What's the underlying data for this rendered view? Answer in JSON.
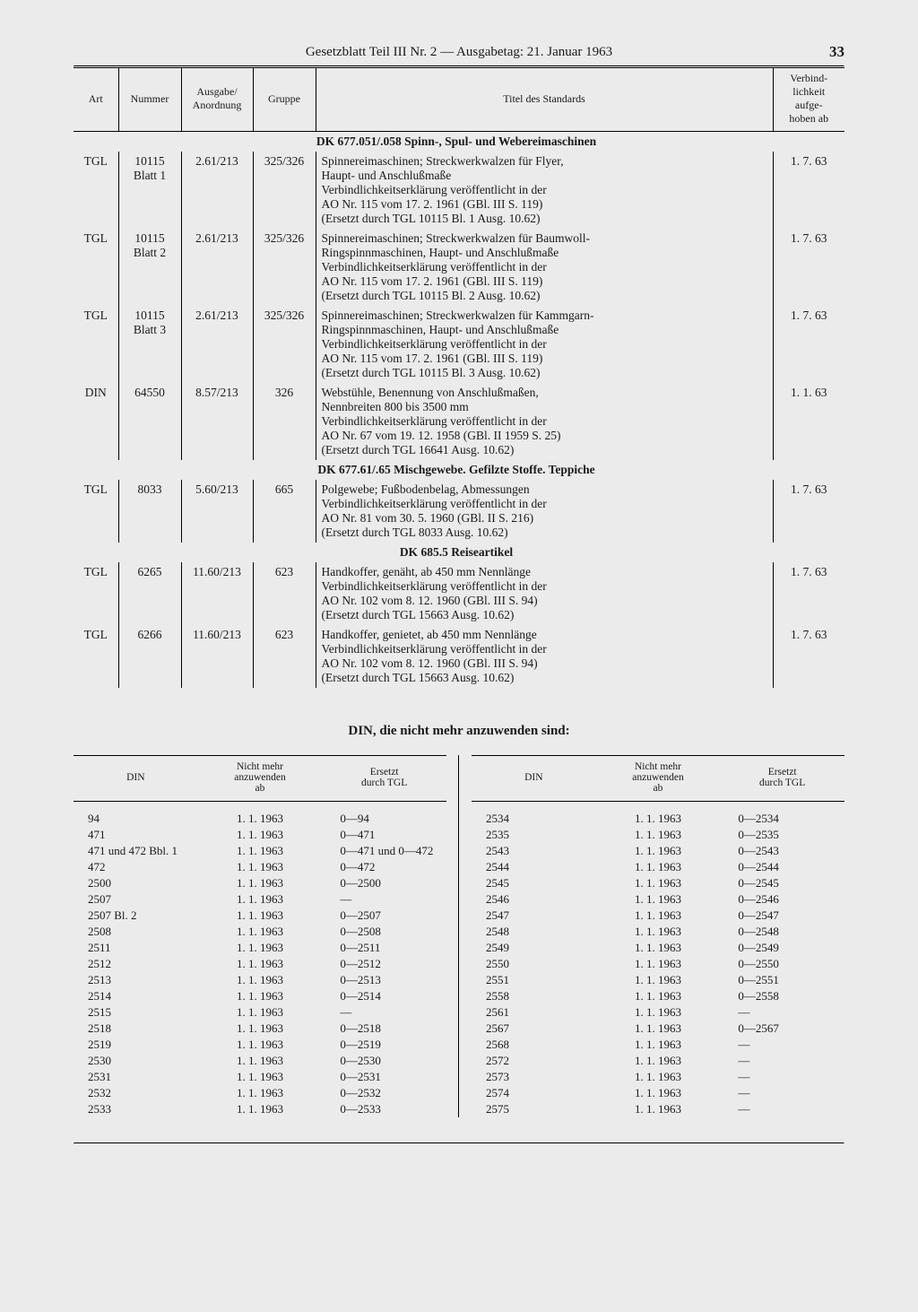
{
  "header": {
    "title": "Gesetzblatt Teil III Nr. 2 — Ausgabetag: 21. Januar 1963",
    "page_number": "33"
  },
  "main_table": {
    "headers": {
      "art": "Art",
      "nummer": "Nummer",
      "ausgabe": "Ausgabe/\nAnordnung",
      "gruppe": "Gruppe",
      "titel": "Titel des Standards",
      "verbind": "Verbind-\nlichkeit\naufge-\nhoben ab"
    },
    "sections": [
      {
        "heading": "DK 677.051/.058 Spinn-, Spul- und Webereimaschinen",
        "rows": [
          {
            "art": "TGL",
            "nummer": "10115\nBlatt 1",
            "ausgabe": "2.61/213",
            "gruppe": "325/326",
            "titel": "Spinnereimaschinen; Streckwerkwalzen für Flyer,\nHaupt- und Anschlußmaße\nVerbindlichkeitserklärung veröffentlicht in der\nAO Nr. 115 vom 17. 2. 1961 (GBl. III S. 119)\n(Ersetzt durch TGL 10115 Bl. 1 Ausg. 10.62)",
            "date": "1. 7. 63"
          },
          {
            "art": "TGL",
            "nummer": "10115\nBlatt 2",
            "ausgabe": "2.61/213",
            "gruppe": "325/326",
            "titel": "Spinnereimaschinen; Streckwerkwalzen für Baumwoll-\nRingspinnmaschinen, Haupt- und Anschlußmaße\nVerbindlichkeitserklärung veröffentlicht in der\nAO Nr. 115 vom 17. 2. 1961 (GBl. III S. 119)\n(Ersetzt durch TGL 10115 Bl. 2 Ausg. 10.62)",
            "date": "1. 7. 63"
          },
          {
            "art": "TGL",
            "nummer": "10115\nBlatt 3",
            "ausgabe": "2.61/213",
            "gruppe": "325/326",
            "titel": "Spinnereimaschinen; Streckwerkwalzen für Kammgarn-\nRingspinnmaschinen, Haupt- und Anschlußmaße\nVerbindlichkeitserklärung veröffentlicht in der\nAO Nr. 115 vom 17. 2. 1961 (GBl. III S. 119)\n(Ersetzt durch TGL 10115 Bl. 3 Ausg. 10.62)",
            "date": "1. 7. 63"
          },
          {
            "art": "DIN",
            "nummer": "64550",
            "ausgabe": "8.57/213",
            "gruppe": "326",
            "titel": "Webstühle, Benennung von Anschlußmaßen,\nNennbreiten 800 bis 3500 mm\nVerbindlichkeitserklärung veröffentlicht in der\nAO Nr. 67 vom 19. 12. 1958 (GBl. II 1959 S. 25)\n(Ersetzt durch TGL 16641 Ausg. 10.62)",
            "date": "1. 1. 63"
          }
        ]
      },
      {
        "heading": "DK 677.61/.65 Mischgewebe. Gefilzte Stoffe. Teppiche",
        "rows": [
          {
            "art": "TGL",
            "nummer": "8033",
            "ausgabe": "5.60/213",
            "gruppe": "665",
            "titel": "Polgewebe; Fußbodenbelag, Abmessungen\nVerbindlichkeitserklärung veröffentlicht in der\nAO Nr. 81 vom 30. 5. 1960 (GBl. II S. 216)\n(Ersetzt durch TGL 8033 Ausg. 10.62)",
            "date": "1. 7. 63"
          }
        ]
      },
      {
        "heading": "DK 685.5 Reiseartikel",
        "rows": [
          {
            "art": "TGL",
            "nummer": "6265",
            "ausgabe": "11.60/213",
            "gruppe": "623",
            "titel": "Handkoffer, genäht, ab 450 mm Nennlänge\nVerbindlichkeitserklärung veröffentlicht in der\nAO Nr. 102 vom 8. 12. 1960 (GBl. III S. 94)\n(Ersetzt durch TGL 15663 Ausg. 10.62)",
            "date": "1. 7. 63"
          },
          {
            "art": "TGL",
            "nummer": "6266",
            "ausgabe": "11.60/213",
            "gruppe": "623",
            "titel": "Handkoffer, genietet, ab 450 mm Nennlänge\nVerbindlichkeitserklärung veröffentlicht in der\nAO Nr. 102 vom 8. 12. 1960 (GBl. III S. 94)\n(Ersetzt durch TGL 15663 Ausg. 10.62)",
            "date": "1. 7. 63"
          }
        ]
      }
    ]
  },
  "din_section": {
    "heading": "DIN, die nicht mehr anzuwenden sind:",
    "headers": {
      "din": "DIN",
      "ab": "Nicht mehr\nanzuwenden\nab",
      "ersetzt": "Ersetzt\ndurch TGL"
    },
    "left": [
      {
        "din": "94",
        "ab": "1. 1. 1963",
        "tgl": "0—94"
      },
      {
        "din": "471",
        "ab": "1. 1. 1963",
        "tgl": "0—471"
      },
      {
        "din": "471 und 472 Bbl. 1",
        "ab": "1. 1. 1963",
        "tgl": "0—471 und 0—472"
      },
      {
        "din": "472",
        "ab": "1. 1. 1963",
        "tgl": "0—472"
      },
      {
        "din": "2500",
        "ab": "1. 1. 1963",
        "tgl": "0—2500"
      },
      {
        "din": "2507",
        "ab": "1. 1. 1963",
        "tgl": "—"
      },
      {
        "din": "2507 Bl. 2",
        "ab": "1. 1. 1963",
        "tgl": "0—2507"
      },
      {
        "din": "2508",
        "ab": "1. 1. 1963",
        "tgl": "0—2508"
      },
      {
        "din": "2511",
        "ab": "1. 1. 1963",
        "tgl": "0—2511"
      },
      {
        "din": "2512",
        "ab": "1. 1. 1963",
        "tgl": "0—2512"
      },
      {
        "din": "2513",
        "ab": "1. 1. 1963",
        "tgl": "0—2513"
      },
      {
        "din": "2514",
        "ab": "1. 1. 1963",
        "tgl": "0—2514"
      },
      {
        "din": "2515",
        "ab": "1. 1. 1963",
        "tgl": "—"
      },
      {
        "din": "2518",
        "ab": "1. 1. 1963",
        "tgl": "0—2518"
      },
      {
        "din": "2519",
        "ab": "1. 1. 1963",
        "tgl": "0—2519"
      },
      {
        "din": "2530",
        "ab": "1. 1. 1963",
        "tgl": "0—2530"
      },
      {
        "din": "2531",
        "ab": "1. 1. 1963",
        "tgl": "0—2531"
      },
      {
        "din": "2532",
        "ab": "1. 1. 1963",
        "tgl": "0—2532"
      },
      {
        "din": "2533",
        "ab": "1. 1. 1963",
        "tgl": "0—2533"
      }
    ],
    "right": [
      {
        "din": "2534",
        "ab": "1. 1. 1963",
        "tgl": "0—2534"
      },
      {
        "din": "2535",
        "ab": "1. 1. 1963",
        "tgl": "0—2535"
      },
      {
        "din": "2543",
        "ab": "1. 1. 1963",
        "tgl": "0—2543"
      },
      {
        "din": "2544",
        "ab": "1. 1. 1963",
        "tgl": "0—2544"
      },
      {
        "din": "2545",
        "ab": "1. 1. 1963",
        "tgl": "0—2545"
      },
      {
        "din": "2546",
        "ab": "1. 1. 1963",
        "tgl": "0—2546"
      },
      {
        "din": "2547",
        "ab": "1. 1. 1963",
        "tgl": "0—2547"
      },
      {
        "din": "2548",
        "ab": "1. 1. 1963",
        "tgl": "0—2548"
      },
      {
        "din": "2549",
        "ab": "1. 1. 1963",
        "tgl": "0—2549"
      },
      {
        "din": "2550",
        "ab": "1. 1. 1963",
        "tgl": "0—2550"
      },
      {
        "din": "2551",
        "ab": "1. 1. 1963",
        "tgl": "0—2551"
      },
      {
        "din": "2558",
        "ab": "1. 1. 1963",
        "tgl": "0—2558"
      },
      {
        "din": "2561",
        "ab": "1. 1. 1963",
        "tgl": "—"
      },
      {
        "din": "2567",
        "ab": "1. 1. 1963",
        "tgl": "0—2567"
      },
      {
        "din": "2568",
        "ab": "1. 1. 1963",
        "tgl": "—"
      },
      {
        "din": "2572",
        "ab": "1. 1. 1963",
        "tgl": "—"
      },
      {
        "din": "2573",
        "ab": "1. 1. 1963",
        "tgl": "—"
      },
      {
        "din": "2574",
        "ab": "1. 1. 1963",
        "tgl": "—"
      },
      {
        "din": "2575",
        "ab": "1. 1. 1963",
        "tgl": "—"
      }
    ]
  }
}
